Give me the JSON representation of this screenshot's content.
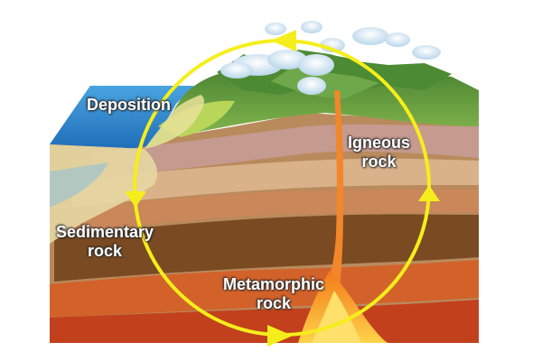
{
  "labels": {
    "deposition": "Deposition",
    "igneous": [
      "Igneous",
      "rock"
    ],
    "sedimentary": [
      "Sedimentary",
      "rock"
    ],
    "metamorphic": [
      "Metamorphic",
      "rock"
    ]
  },
  "colors": {
    "cycle_arrow": "#f5ee1c",
    "ocean": "#2f86c8",
    "magma": "#f7a81e",
    "mountain": "#5e9a3c"
  },
  "icons": {
    "arrow_top": "arrow-left-icon",
    "arrow_right": "arrow-up-icon",
    "arrow_bottom": "arrow-right-icon",
    "arrow_left": "arrow-down-icon"
  }
}
